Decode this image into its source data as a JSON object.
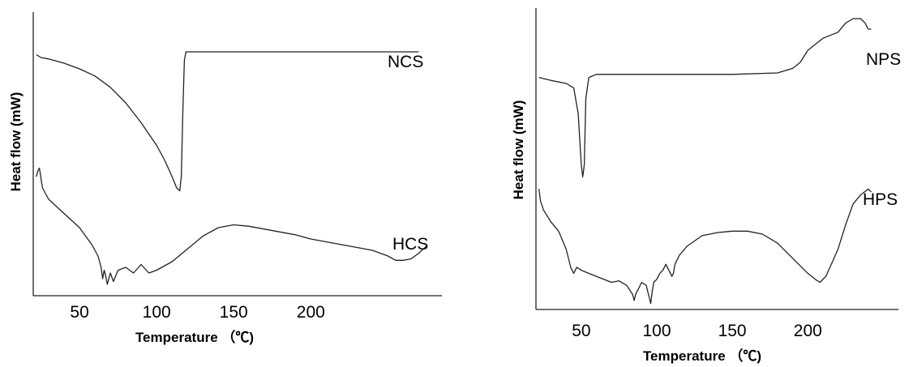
{
  "chart_data": [
    {
      "type": "line",
      "xlabel": "Temperature （℃)",
      "ylabel": "Heat flow (mW)",
      "xlim": [
        20,
        285
      ],
      "ylim": [
        0,
        100
      ],
      "xticks": [
        50,
        100,
        150,
        200
      ],
      "xtick_labels": [
        "50",
        "100",
        "150",
        "200"
      ],
      "yticks_shown": false,
      "grid": false,
      "series": [
        {
          "name": "NCS",
          "x": [
            22,
            25,
            30,
            40,
            50,
            60,
            70,
            80,
            90,
            100,
            105,
            110,
            113,
            115,
            116,
            117,
            118,
            119,
            120,
            125,
            150,
            200,
            250,
            270
          ],
          "y": [
            85,
            84,
            83.5,
            82,
            80,
            77.5,
            73.5,
            68,
            61,
            53,
            48,
            42,
            38,
            37,
            42,
            65,
            83,
            86,
            86,
            86,
            86,
            86,
            86,
            86
          ]
        },
        {
          "name": "HCS",
          "x": [
            22,
            23,
            24,
            26,
            30,
            40,
            50,
            58,
            62,
            64,
            65,
            66,
            67,
            68,
            70,
            72,
            75,
            80,
            85,
            90,
            95,
            100,
            110,
            120,
            130,
            140,
            150,
            160,
            170,
            180,
            190,
            200,
            210,
            220,
            230,
            240,
            250,
            255,
            260,
            265,
            270,
            275
          ],
          "y": [
            42,
            44,
            45,
            38,
            34,
            29,
            24,
            18,
            14,
            10,
            6,
            9,
            7,
            4,
            8,
            5,
            9,
            10,
            8,
            11,
            8,
            9,
            12,
            16.5,
            21,
            24,
            25,
            24.5,
            23.5,
            22.5,
            21.5,
            20,
            19,
            18,
            17,
            16,
            14,
            12.5,
            12.5,
            13,
            15,
            17.5
          ]
        }
      ]
    },
    {
      "type": "line",
      "xlabel": "Temperature （℃)",
      "ylabel": "Heat flow (mW)",
      "xlim": [
        20,
        260
      ],
      "ylim": [
        0,
        100
      ],
      "xticks": [
        50,
        100,
        150,
        200
      ],
      "xtick_labels": [
        "50",
        "100",
        "150",
        "200"
      ],
      "yticks_shown": false,
      "grid": false,
      "series": [
        {
          "name": "NPS",
          "x": [
            22,
            30,
            40,
            45,
            48,
            50,
            51,
            52,
            53,
            55,
            60,
            80,
            100,
            150,
            180,
            190,
            195,
            200,
            205,
            210,
            220,
            225,
            230,
            235,
            238,
            240,
            242
          ],
          "y": [
            77,
            76,
            75,
            73.5,
            65,
            48,
            44,
            48,
            70,
            77,
            78,
            78,
            78,
            78,
            78.5,
            80,
            82,
            86,
            88,
            90,
            92,
            95,
            96.5,
            96.5,
            95,
            93,
            93
          ]
        },
        {
          "name": "HPS",
          "x": [
            22,
            23,
            25,
            30,
            35,
            40,
            43,
            45,
            47,
            50,
            55,
            60,
            70,
            75,
            80,
            84,
            85,
            86,
            88,
            90,
            93,
            94,
            95,
            96,
            97,
            98,
            100,
            102,
            104,
            106,
            108,
            110,
            111,
            112,
            115,
            120,
            130,
            140,
            150,
            160,
            170,
            180,
            190,
            200,
            205,
            208,
            212,
            220,
            225,
            230,
            235,
            240,
            242
          ],
          "y": [
            40,
            36,
            33,
            29,
            26,
            20,
            14,
            12,
            14,
            13,
            12,
            11,
            9,
            9.5,
            8,
            5,
            3,
            5,
            7,
            9,
            8,
            6,
            4,
            2,
            6,
            9,
            10,
            12,
            13,
            15,
            13,
            11,
            12,
            15,
            18,
            21,
            24.5,
            25.5,
            26,
            26,
            25,
            22,
            17,
            12,
            10,
            9,
            11,
            20,
            28,
            35,
            38,
            40,
            39
          ]
        }
      ]
    }
  ]
}
